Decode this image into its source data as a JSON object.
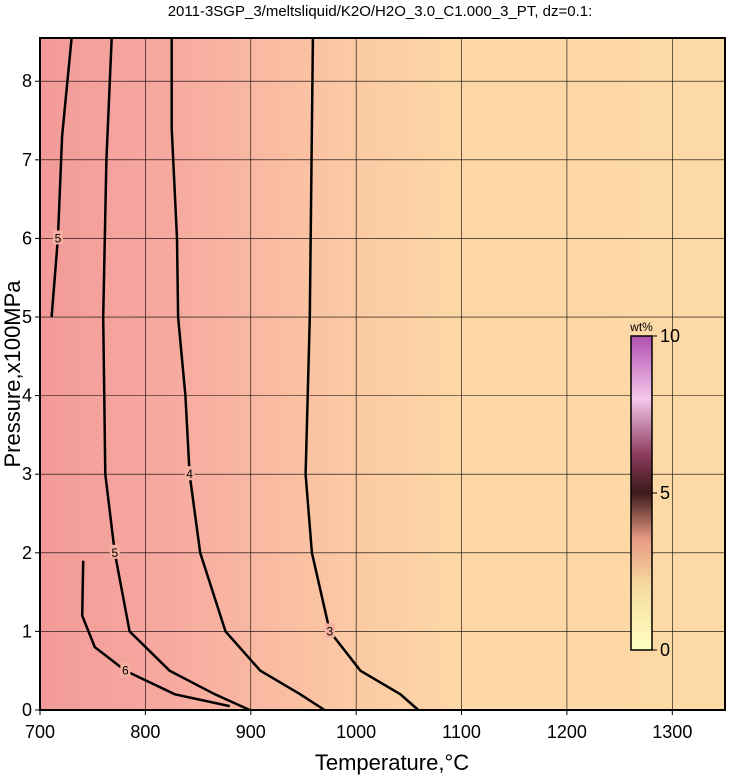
{
  "chart_data": {
    "type": "contour",
    "title": "2011-3SGP_3/meltsliquid/K2O/H2O_3.0_C1.000_3_PT, dz=0.1:",
    "xlabel": "Temperature,°C",
    "ylabel": "Pressure,x100MPa",
    "xlim": [
      700,
      1350
    ],
    "ylim": [
      0,
      8.55
    ],
    "xticks": [
      700,
      800,
      900,
      1000,
      1100,
      1200,
      1300
    ],
    "yticks": [
      0,
      1,
      2,
      3,
      4,
      5,
      6,
      7,
      8
    ],
    "grid": true,
    "color": "#000000",
    "contours": [
      {
        "level": 3,
        "x": [
          959,
          956,
          952,
          958,
          975,
          1004,
          1042,
          1059
        ],
        "y": [
          8.55,
          5,
          3,
          2,
          1,
          0.5,
          0.2,
          0
        ]
      },
      {
        "level": 4,
        "x": [
          825,
          825,
          830,
          831,
          838,
          842,
          852,
          876,
          909,
          947,
          970
        ],
        "y": [
          8.55,
          7.4,
          6,
          5,
          4,
          3,
          2,
          1,
          0.5,
          0.2,
          0
        ]
      },
      {
        "level": 5,
        "x": [
          768,
          763,
          760,
          762,
          771,
          785,
          823,
          866,
          899
        ],
        "y": [
          8.55,
          7,
          5,
          3,
          2,
          1,
          0.5,
          0.2,
          0
        ]
      },
      {
        "level": 5,
        "x": [
          730,
          721,
          717,
          711
        ],
        "y": [
          8.55,
          7.3,
          6,
          5
        ]
      },
      {
        "level": 6,
        "x": [
          741,
          740,
          752,
          781,
          828,
          880
        ],
        "y": [
          1.9,
          1.2,
          0.8,
          0.5,
          0.2,
          0.05
        ]
      }
    ],
    "colorbar": {
      "label": "wt%",
      "lim": [
        0,
        10
      ],
      "ticks": [
        0,
        5,
        10
      ]
    }
  }
}
